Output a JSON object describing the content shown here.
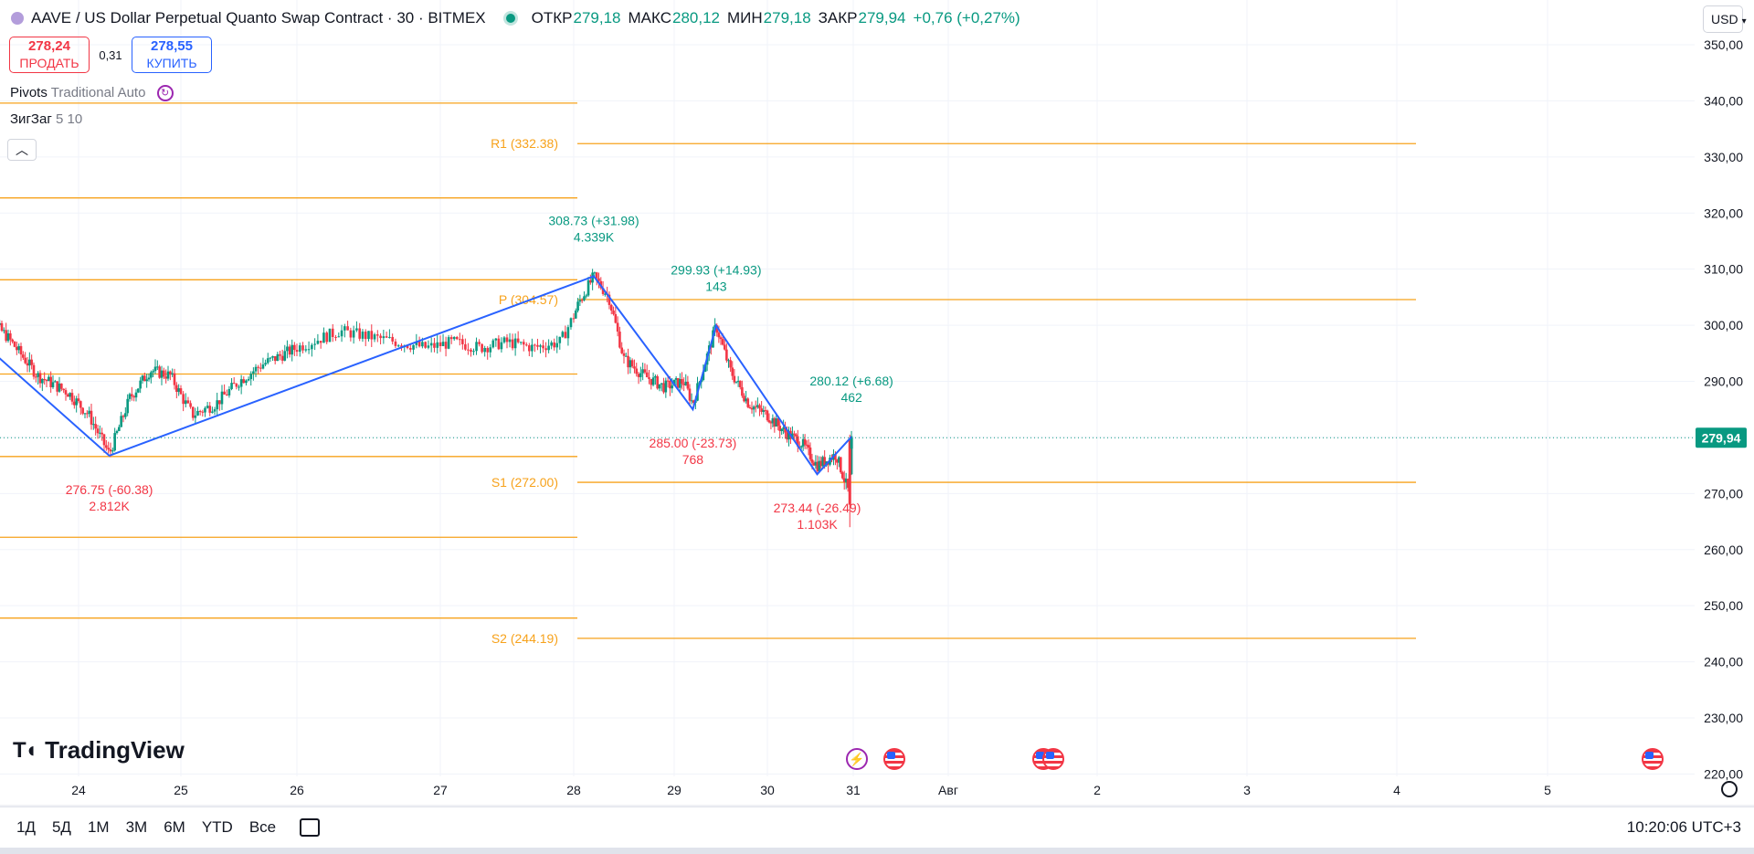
{
  "header": {
    "title": "AAVE / US Dollar Perpetual Quanto Swap Contract · 30 · BITMEX",
    "open_label": "ОТКР",
    "open": "279,18",
    "high_label": "МАКС",
    "high": "280,12",
    "low_label": "МИН",
    "low": "279,18",
    "close_label": "ЗАКР",
    "close": "279,94",
    "change": "+0,76 (+0,27%)"
  },
  "trade": {
    "sell_price": "278,24",
    "sell_label": "ПРОДАТЬ",
    "spread": "0,31",
    "buy_price": "278,55",
    "buy_label": "КУПИТЬ"
  },
  "indicators": {
    "pivots_name": "Pivots",
    "pivots_params": "Traditional Auto",
    "zigzag_name": "ЗигЗаг",
    "zigzag_params": "5 10"
  },
  "currency": "USD",
  "branding": "TradingView",
  "ranges": [
    "1Д",
    "5Д",
    "1М",
    "3М",
    "6М",
    "YTD",
    "Все"
  ],
  "clock": "10:20:06 UTC+3",
  "colors": {
    "up": "#089981",
    "down": "#f23645",
    "pivot": "#f7a21b",
    "zigzag": "#2962ff"
  },
  "chart_data": {
    "type": "candlestick",
    "y_range": [
      217,
      354
    ],
    "y_ticks": [
      "350,00",
      "340,00",
      "330,00",
      "320,00",
      "310,00",
      "300,00",
      "290,00",
      "280,00",
      "270,00",
      "260,00",
      "250,00",
      "240,00",
      "230,00",
      "220,00"
    ],
    "y_tick_values": [
      350,
      340,
      330,
      320,
      310,
      300,
      290,
      280,
      270,
      260,
      250,
      240,
      230,
      220
    ],
    "x_ticks": [
      "24",
      "25",
      "26",
      "27",
      "28",
      "29",
      "30",
      "31",
      "Авг",
      "2",
      "3",
      "4",
      "5"
    ],
    "last_price": {
      "value": 279.94,
      "label": "279,94"
    },
    "pivot_lines_current": [
      {
        "name": "R1",
        "label": "R1 (332.38)",
        "value": 332.38
      },
      {
        "name": "P",
        "label": "P (304.57)",
        "value": 304.57
      },
      {
        "name": "S1",
        "label": "S1 (272.00)",
        "value": 272.0
      },
      {
        "name": "S2",
        "label": "S2 (244.19)",
        "value": 244.19
      }
    ],
    "pivot_lines_previous": [
      339.6,
      322.7,
      308.1,
      291.3,
      276.6,
      262.2,
      247.8
    ],
    "zigzag": [
      {
        "day": 23.0,
        "price": 297.8
      },
      {
        "day": 24.3,
        "price": 276.75
      },
      {
        "day": 28.2,
        "price": 308.73
      },
      {
        "day": 29.2,
        "price": 285.0
      },
      {
        "day": 29.45,
        "price": 299.93
      },
      {
        "day": 30.58,
        "price": 273.44
      },
      {
        "day": 30.98,
        "price": 280.12
      }
    ],
    "zigzag_labels": [
      {
        "text": "276.75 (-60.38)",
        "sub": "2.812K",
        "color": "down",
        "day": 24.3,
        "price": 276.75,
        "pos": "below"
      },
      {
        "text": "308.73 (+31.98)",
        "sub": "4.339K",
        "color": "up",
        "day": 28.2,
        "price": 308.73,
        "pos": "above"
      },
      {
        "text": "285.00 (-23.73)",
        "sub": "768",
        "color": "down",
        "day": 29.2,
        "price": 285.0,
        "pos": "below"
      },
      {
        "text": "299.93 (+14.93)",
        "sub": "143",
        "color": "up",
        "day": 29.45,
        "price": 299.93,
        "pos": "above"
      },
      {
        "text": "273.44 (-26.49)",
        "sub": "1.103K",
        "color": "down",
        "day": 30.58,
        "price": 273.44,
        "pos": "below"
      },
      {
        "text": "280.12 (+6.68)",
        "sub": "462",
        "color": "up",
        "day": 30.98,
        "price": 280.12,
        "pos": "above"
      }
    ],
    "price_path": [
      [
        23.0,
        303.5
      ],
      [
        23.3,
        298
      ],
      [
        23.6,
        291
      ],
      [
        23.9,
        288
      ],
      [
        24.1,
        284
      ],
      [
        24.3,
        277
      ],
      [
        24.5,
        287
      ],
      [
        24.7,
        292
      ],
      [
        24.9,
        291
      ],
      [
        25.1,
        284
      ],
      [
        25.3,
        286
      ],
      [
        25.5,
        290
      ],
      [
        25.7,
        293
      ],
      [
        25.9,
        295
      ],
      [
        26.1,
        297
      ],
      [
        26.3,
        299
      ],
      [
        26.5,
        298
      ],
      [
        26.7,
        297
      ],
      [
        26.9,
        296
      ],
      [
        27.1,
        297
      ],
      [
        27.3,
        296
      ],
      [
        27.5,
        297
      ],
      [
        27.7,
        296
      ],
      [
        27.9,
        297
      ],
      [
        28.05,
        304
      ],
      [
        28.2,
        308.7
      ],
      [
        28.35,
        305
      ],
      [
        28.5,
        294
      ],
      [
        28.7,
        291
      ],
      [
        28.9,
        289
      ],
      [
        29.1,
        290
      ],
      [
        29.2,
        286
      ],
      [
        29.45,
        299.9
      ],
      [
        29.6,
        292
      ],
      [
        29.8,
        286
      ],
      [
        30.0,
        284
      ],
      [
        30.2,
        281
      ],
      [
        30.4,
        279
      ],
      [
        30.58,
        275
      ],
      [
        30.8,
        277
      ],
      [
        30.95,
        270
      ],
      [
        30.98,
        279.9
      ]
    ],
    "event_markers": [
      "flash",
      "us-flag",
      "us-flag",
      "us-flag",
      "us-flag"
    ]
  }
}
